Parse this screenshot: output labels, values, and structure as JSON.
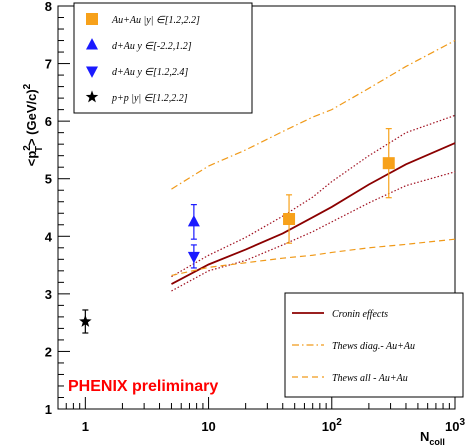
{
  "chart_data": {
    "type": "scatter",
    "title": "",
    "ylabel": {
      "base": "<p",
      "sup": "2",
      "sub": "T",
      "rest": "> (GeV/c)",
      "sup2": "2"
    },
    "xlabel": {
      "base": "N",
      "sub": "coll"
    },
    "x_scale": "log",
    "xlim": [
      0.6,
      1000
    ],
    "ylim": [
      1,
      8
    ],
    "x_tick_labels": [
      {
        "value": 1,
        "text": "1"
      },
      {
        "value": 10,
        "text": "10"
      },
      {
        "value": 100,
        "base": "10",
        "sup": "2"
      },
      {
        "value": 1000,
        "base": "10",
        "sup": "3"
      }
    ],
    "y_tick_labels": [
      {
        "value": 1,
        "text": "1"
      },
      {
        "value": 2,
        "text": "2"
      },
      {
        "value": 3,
        "text": "3"
      },
      {
        "value": 4,
        "text": "4"
      },
      {
        "value": 5,
        "text": "5"
      },
      {
        "value": 6,
        "text": "6"
      },
      {
        "value": 7,
        "text": "7"
      },
      {
        "value": 8,
        "text": "8"
      }
    ],
    "grid": false,
    "series": [
      {
        "name": "Au+Au |y| ∈[1.2,2.2]",
        "marker": "square",
        "color": "#f7a11a",
        "points": [
          {
            "x": 45,
            "y": 4.3,
            "yerr_low": 0.42,
            "yerr_high": 0.42
          },
          {
            "x": 290,
            "y": 5.27,
            "yerr_low": 0.6,
            "yerr_high": 0.6
          }
        ]
      },
      {
        "name": "d+Au y ∈[-2.2,1.2]",
        "marker": "triangle-up",
        "color": "#1a1aff",
        "points": [
          {
            "x": 7.6,
            "y": 4.25,
            "yerr_low": 0.3,
            "yerr_high": 0.3
          }
        ]
      },
      {
        "name": "d+Au y ∈[1.2,2.4]",
        "marker": "triangle-down",
        "color": "#1a1aff",
        "points": [
          {
            "x": 7.6,
            "y": 3.65,
            "yerr_low": 0.2,
            "yerr_high": 0.2
          }
        ]
      },
      {
        "name": "p+p |y| ∈[1.2,2.2]",
        "marker": "star",
        "color": "#000000",
        "points": [
          {
            "x": 1,
            "y": 2.52,
            "yerr_low": 0.2,
            "yerr_high": 0.2
          }
        ]
      }
    ],
    "curves": [
      {
        "name": "Cronin effects",
        "color": "#8b0000",
        "style": "solid",
        "x": [
          5,
          10,
          20,
          40,
          70,
          100,
          200,
          400,
          1000
        ],
        "y": [
          3.17,
          3.51,
          3.77,
          4.05,
          4.33,
          4.51,
          4.9,
          5.25,
          5.62
        ]
      },
      {
        "name": "",
        "color": "#a01020",
        "style": "dotted",
        "x": [
          5,
          10,
          20,
          40,
          70,
          100,
          200,
          400,
          1000
        ],
        "y": [
          3.3,
          3.67,
          3.98,
          4.35,
          4.68,
          4.95,
          5.4,
          5.8,
          6.1
        ]
      },
      {
        "name": "",
        "color": "#a01020",
        "style": "dotted",
        "x": [
          5,
          10,
          20,
          40,
          70,
          100,
          200,
          400,
          1000
        ],
        "y": [
          3.05,
          3.4,
          3.58,
          3.85,
          4.08,
          4.25,
          4.58,
          4.88,
          5.12
        ]
      },
      {
        "name": "Thews diag.- Au+Au",
        "color": "#f09a1a",
        "style": "dashdot",
        "x": [
          5,
          10,
          20,
          40,
          70,
          100,
          200,
          400,
          1000
        ],
        "y": [
          4.82,
          5.22,
          5.5,
          5.82,
          6.07,
          6.2,
          6.57,
          6.95,
          7.4
        ]
      },
      {
        "name": "Thews all - Au+Au",
        "color": "#f09a1a",
        "style": "dashed",
        "x": [
          5,
          10,
          20,
          40,
          70,
          100,
          200,
          400,
          1000
        ],
        "y": [
          3.32,
          3.46,
          3.54,
          3.62,
          3.67,
          3.72,
          3.8,
          3.86,
          3.95
        ]
      }
    ],
    "legend_top": [
      {
        "marker": "square",
        "color": "#f7a11a",
        "text": "Au+Au |y| ∈[1.2,2.2]"
      },
      {
        "marker": "triangle-up",
        "color": "#1a1aff",
        "text": "d+Au y ∈[-2.2,1.2]"
      },
      {
        "marker": "triangle-down",
        "color": "#1a1aff",
        "text": "d+Au y ∈[1.2,2.4]"
      },
      {
        "marker": "star",
        "color": "#000000",
        "text": "p+p |y| ∈[1.2,2.2]"
      }
    ],
    "legend_top_placement": "top-left",
    "legend_bottom": [
      {
        "style": "solid",
        "color": "#8b0000",
        "text": "Cronin effects"
      },
      {
        "style": "dashdot",
        "color": "#f09a1a",
        "text": "Thews diag.- Au+Au"
      },
      {
        "style": "dashed",
        "color": "#f09a1a",
        "text": "Thews all - Au+Au"
      }
    ],
    "legend_bottom_placement": "bottom-right",
    "annotation": "PHENIX preliminary"
  }
}
